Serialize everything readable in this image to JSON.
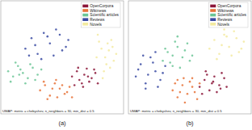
{
  "chart_data": [
    {
      "type": "scatter",
      "title": "(a)",
      "annotations": [
        "UMAP: metric = chebyshev, n_neighbors = 30, min_dist = 0.5"
      ],
      "xlim": [
        0,
        100
      ],
      "ylim": [
        -5,
        125
      ],
      "tick_labels": false,
      "legend": "upper right",
      "marker": "circle",
      "series": [
        {
          "name": "OpenCorpora",
          "color": "#8b1538",
          "x": [
            58,
            62,
            66,
            70,
            74,
            77,
            60,
            64,
            68,
            72,
            76,
            63,
            67,
            71,
            79
          ],
          "values": [
            38,
            44,
            30,
            47,
            36,
            42,
            28,
            34,
            40,
            32,
            46,
            48,
            26,
            38,
            30
          ]
        },
        {
          "name": "Wikinews",
          "color": "#e8733a",
          "x": [
            32,
            36,
            40,
            44,
            48,
            52,
            56,
            38,
            42,
            46,
            50,
            54,
            35,
            45,
            58
          ],
          "values": [
            22,
            28,
            16,
            30,
            24,
            18,
            26,
            12,
            24,
            14,
            28,
            20,
            32,
            34,
            14
          ]
        },
        {
          "name": "Scientific articles",
          "color": "#6cc596",
          "x": [
            6,
            10,
            14,
            18,
            22,
            26,
            30,
            8,
            12,
            16,
            20,
            24,
            28,
            15,
            33
          ],
          "values": [
            44,
            38,
            50,
            42,
            36,
            48,
            40,
            32,
            54,
            46,
            30,
            52,
            34,
            40,
            46
          ]
        },
        {
          "name": "Reviews",
          "color": "#3b4ba3",
          "x": [
            20,
            25,
            30,
            35,
            40,
            45,
            50,
            55,
            28,
            33,
            38,
            43,
            48,
            23,
            53
          ],
          "values": [
            70,
            82,
            64,
            88,
            76,
            92,
            68,
            80,
            74,
            58,
            84,
            62,
            86,
            62,
            72
          ]
        },
        {
          "name": "Novels",
          "color": "#f3eaa0",
          "x": [
            78,
            82,
            86,
            90,
            94,
            80,
            84,
            88,
            92,
            79,
            83,
            87,
            91,
            85,
            89
          ],
          "values": [
            60,
            70,
            52,
            80,
            64,
            78,
            44,
            68,
            56,
            86,
            36,
            76,
            72,
            60,
            48
          ]
        }
      ]
    },
    {
      "type": "scatter",
      "title": "(b)",
      "annotations": [
        "UMAP: metric = chebyshev, n_neighbors = 30, min_dist = 0.5"
      ],
      "xlim": [
        0,
        100
      ],
      "ylim": [
        -5,
        125
      ],
      "tick_labels": false,
      "legend": "upper right",
      "marker": "circle",
      "series": [
        {
          "name": "OpenCorpora",
          "color": "#8b1538",
          "x": [
            58,
            62,
            66,
            70,
            74,
            78,
            60,
            64,
            68,
            72,
            76,
            80,
            63,
            69,
            75
          ],
          "values": [
            26,
            34,
            22,
            38,
            28,
            36,
            18,
            40,
            30,
            20,
            42,
            26,
            44,
            32,
            24
          ]
        },
        {
          "name": "Wikinews",
          "color": "#e8733a",
          "x": [
            36,
            40,
            44,
            48,
            52,
            56,
            38,
            42,
            46,
            50,
            54,
            58,
            45,
            40,
            52
          ],
          "values": [
            22,
            14,
            28,
            18,
            26,
            12,
            30,
            20,
            8,
            32,
            20,
            30,
            36,
            34,
            36
          ]
        },
        {
          "name": "Scientific articles",
          "color": "#6cc596",
          "x": [
            28,
            32,
            36,
            40,
            44,
            48,
            52,
            30,
            34,
            38,
            42,
            46,
            50,
            40,
            36
          ],
          "values": [
            56,
            66,
            50,
            72,
            60,
            76,
            62,
            70,
            54,
            78,
            48,
            68,
            56,
            84,
            62
          ]
        },
        {
          "name": "Reviews",
          "color": "#3b4ba3",
          "x": [
            6,
            10,
            14,
            18,
            22,
            26,
            30,
            8,
            12,
            16,
            20,
            24,
            28,
            14,
            22
          ],
          "values": [
            38,
            52,
            30,
            60,
            44,
            34,
            50,
            46,
            62,
            40,
            54,
            26,
            42,
            24,
            66
          ]
        },
        {
          "name": "Novels",
          "color": "#f3eaa0",
          "x": [
            66,
            70,
            74,
            78,
            82,
            86,
            90,
            94,
            72,
            76,
            80,
            84,
            88,
            92,
            78
          ],
          "values": [
            70,
            80,
            64,
            86,
            72,
            90,
            66,
            78,
            58,
            74,
            84,
            62,
            82,
            70,
            92
          ]
        }
      ]
    }
  ]
}
